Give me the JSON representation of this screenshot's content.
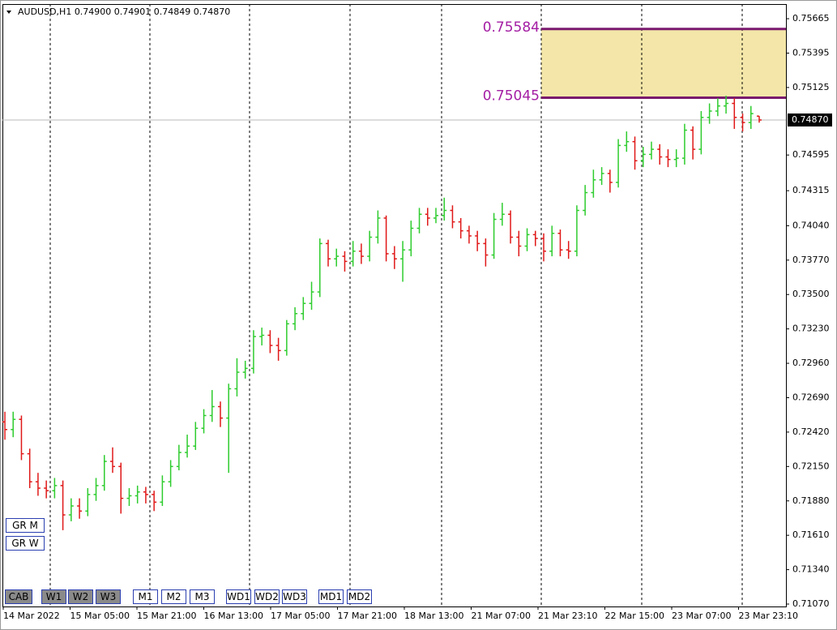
{
  "chart_data": {
    "type": "ohlc",
    "header": "AUDUSD,H1  0.74900 0.74901 0.74849 0.74870",
    "ylim": [
      0.7578,
      0.71051
    ],
    "yticks": [
      {
        "value": 0.75665,
        "label": "0.75665"
      },
      {
        "value": 0.75395,
        "label": "0.75395"
      },
      {
        "value": 0.75125,
        "label": "0.75125"
      },
      {
        "value": 0.74595,
        "label": "0.74595"
      },
      {
        "value": 0.74315,
        "label": "0.74315"
      },
      {
        "value": 0.7404,
        "label": "0.74040"
      },
      {
        "value": 0.7377,
        "label": "0.73770"
      },
      {
        "value": 0.735,
        "label": "0.73500"
      },
      {
        "value": 0.7323,
        "label": "0.73230"
      },
      {
        "value": 0.7296,
        "label": "0.72960"
      },
      {
        "value": 0.7269,
        "label": "0.72690"
      },
      {
        "value": 0.7242,
        "label": "0.72420"
      },
      {
        "value": 0.7215,
        "label": "0.72150"
      },
      {
        "value": 0.7188,
        "label": "0.71880"
      },
      {
        "value": 0.7161,
        "label": "0.71610"
      },
      {
        "value": 0.7134,
        "label": "0.71340"
      },
      {
        "value": 0.7107,
        "label": "0.71070"
      }
    ],
    "x_labels": [
      "14 Mar 2022",
      "15 Mar 05:00",
      "15 Mar 21:00",
      "16 Mar 13:00",
      "17 Mar 05:00",
      "17 Mar 21:00",
      "18 Mar 13:00",
      "21 Mar 07:00",
      "21 Mar 23:10",
      "22 Mar 15:00",
      "23 Mar 07:00",
      "23 Mar 23:10"
    ],
    "up_color": "#2ecc2e",
    "down_color": "#e01818",
    "last": {
      "value": 0.7487,
      "label": "0.74870"
    },
    "zone": {
      "high": 0.75584,
      "low": 0.75045,
      "fill": "#f3e6a8",
      "line_color": "#7a1a6e",
      "label_color": "#a41ea4"
    },
    "ohlc": [
      [
        0.725,
        0.7258,
        0.7236,
        0.7244
      ],
      [
        0.7244,
        0.7258,
        0.7238,
        0.7252
      ],
      [
        0.7252,
        0.7255,
        0.722,
        0.7225
      ],
      [
        0.7225,
        0.7229,
        0.7198,
        0.7203
      ],
      [
        0.7203,
        0.721,
        0.7192,
        0.7198
      ],
      [
        0.7198,
        0.7204,
        0.719,
        0.7196
      ],
      [
        0.7196,
        0.7206,
        0.719,
        0.72
      ],
      [
        0.72,
        0.7204,
        0.7165,
        0.7177
      ],
      [
        0.7177,
        0.719,
        0.7172,
        0.7184
      ],
      [
        0.7184,
        0.719,
        0.7174,
        0.718
      ],
      [
        0.718,
        0.7198,
        0.7176,
        0.7193
      ],
      [
        0.7193,
        0.7206,
        0.7188,
        0.72
      ],
      [
        0.72,
        0.7224,
        0.7196,
        0.7219
      ],
      [
        0.7219,
        0.723,
        0.721,
        0.7215
      ],
      [
        0.7215,
        0.7218,
        0.7178,
        0.719
      ],
      [
        0.719,
        0.7198,
        0.7184,
        0.7192
      ],
      [
        0.7192,
        0.72,
        0.7186,
        0.7195
      ],
      [
        0.7195,
        0.7199,
        0.7186,
        0.7193
      ],
      [
        0.7193,
        0.7196,
        0.718,
        0.7187
      ],
      [
        0.7187,
        0.7208,
        0.7184,
        0.7203
      ],
      [
        0.7203,
        0.722,
        0.7199,
        0.7215
      ],
      [
        0.7215,
        0.7232,
        0.7212,
        0.7226
      ],
      [
        0.7226,
        0.724,
        0.7222,
        0.7231
      ],
      [
        0.7231,
        0.725,
        0.7228,
        0.7245
      ],
      [
        0.7245,
        0.726,
        0.7241,
        0.7255
      ],
      [
        0.7255,
        0.7275,
        0.725,
        0.7262
      ],
      [
        0.7262,
        0.7266,
        0.7246,
        0.7253
      ],
      [
        0.7253,
        0.728,
        0.721,
        0.7276
      ],
      [
        0.7276,
        0.73,
        0.727,
        0.7289
      ],
      [
        0.7289,
        0.7298,
        0.7284,
        0.7292
      ],
      [
        0.7292,
        0.7322,
        0.7288,
        0.7317
      ],
      [
        0.7317,
        0.7324,
        0.731,
        0.7318
      ],
      [
        0.7318,
        0.7322,
        0.7304,
        0.731
      ],
      [
        0.731,
        0.7316,
        0.7298,
        0.7306
      ],
      [
        0.7306,
        0.733,
        0.7302,
        0.7327
      ],
      [
        0.7327,
        0.734,
        0.7322,
        0.7335
      ],
      [
        0.7335,
        0.7348,
        0.733,
        0.7343
      ],
      [
        0.7343,
        0.736,
        0.7338,
        0.7352
      ],
      [
        0.7352,
        0.7394,
        0.7348,
        0.739
      ],
      [
        0.739,
        0.7393,
        0.7372,
        0.7378
      ],
      [
        0.7378,
        0.7386,
        0.7372,
        0.738
      ],
      [
        0.738,
        0.7384,
        0.7368,
        0.7376
      ],
      [
        0.7376,
        0.7392,
        0.7372,
        0.7384
      ],
      [
        0.7384,
        0.739,
        0.7374,
        0.738
      ],
      [
        0.738,
        0.74,
        0.7376,
        0.7395
      ],
      [
        0.7395,
        0.7416,
        0.739,
        0.741
      ],
      [
        0.741,
        0.7412,
        0.7376,
        0.7382
      ],
      [
        0.7382,
        0.7388,
        0.737,
        0.7378
      ],
      [
        0.7378,
        0.7392,
        0.736,
        0.7385
      ],
      [
        0.7385,
        0.7408,
        0.738,
        0.7402
      ],
      [
        0.7402,
        0.7418,
        0.7398,
        0.7413
      ],
      [
        0.7413,
        0.7418,
        0.7404,
        0.741
      ],
      [
        0.741,
        0.7418,
        0.7406,
        0.7412
      ],
      [
        0.7412,
        0.7426,
        0.7408,
        0.7416
      ],
      [
        0.7416,
        0.742,
        0.7402,
        0.7407
      ],
      [
        0.7407,
        0.741,
        0.7394,
        0.74
      ],
      [
        0.74,
        0.7404,
        0.739,
        0.7396
      ],
      [
        0.7396,
        0.74,
        0.7384,
        0.739
      ],
      [
        0.739,
        0.7394,
        0.7372,
        0.7381
      ],
      [
        0.7381,
        0.7414,
        0.7378,
        0.7409
      ],
      [
        0.7409,
        0.7422,
        0.7404,
        0.7413
      ],
      [
        0.7413,
        0.7416,
        0.739,
        0.7395
      ],
      [
        0.7395,
        0.74,
        0.738,
        0.7388
      ],
      [
        0.7388,
        0.7402,
        0.7384,
        0.7397
      ],
      [
        0.7397,
        0.74,
        0.7388,
        0.7394
      ],
      [
        0.7394,
        0.7398,
        0.7376,
        0.7384
      ],
      [
        0.7384,
        0.7404,
        0.738,
        0.7398
      ],
      [
        0.7398,
        0.7401,
        0.738,
        0.7385
      ],
      [
        0.7385,
        0.7392,
        0.7378,
        0.7384
      ],
      [
        0.7384,
        0.742,
        0.738,
        0.7416
      ],
      [
        0.7416,
        0.7436,
        0.7412,
        0.743
      ],
      [
        0.743,
        0.7448,
        0.7426,
        0.744
      ],
      [
        0.744,
        0.745,
        0.7436,
        0.7445
      ],
      [
        0.7445,
        0.7448,
        0.743,
        0.7438
      ],
      [
        0.7438,
        0.7472,
        0.7434,
        0.7467
      ],
      [
        0.7467,
        0.7478,
        0.7462,
        0.747
      ],
      [
        0.747,
        0.7474,
        0.7448,
        0.7455
      ],
      [
        0.7455,
        0.7466,
        0.745,
        0.746
      ],
      [
        0.746,
        0.747,
        0.7456,
        0.7464
      ],
      [
        0.7464,
        0.7468,
        0.7452,
        0.7458
      ],
      [
        0.7458,
        0.7464,
        0.745,
        0.7456
      ],
      [
        0.7456,
        0.7464,
        0.745,
        0.7457
      ],
      [
        0.7457,
        0.7484,
        0.7452,
        0.7479
      ],
      [
        0.7479,
        0.7482,
        0.7456,
        0.7464
      ],
      [
        0.7464,
        0.7494,
        0.746,
        0.7489
      ],
      [
        0.7489,
        0.75,
        0.7484,
        0.7494
      ],
      [
        0.7494,
        0.7504,
        0.749,
        0.7498
      ],
      [
        0.7498,
        0.7506,
        0.7492,
        0.75
      ],
      [
        0.75,
        0.7504,
        0.748,
        0.7489
      ],
      [
        0.7489,
        0.7492,
        0.7478,
        0.7485
      ],
      [
        0.7485,
        0.7498,
        0.748,
        0.7492
      ],
      [
        0.749,
        0.74901,
        0.74849,
        0.7487
      ]
    ]
  },
  "controls": {
    "side": [
      "GR M",
      "GR W"
    ],
    "bottom": [
      "CAB",
      "W1",
      "W2",
      "W3",
      "M1",
      "M2",
      "M3",
      "WD1",
      "WD2",
      "WD3",
      "MD1",
      "MD2"
    ]
  }
}
